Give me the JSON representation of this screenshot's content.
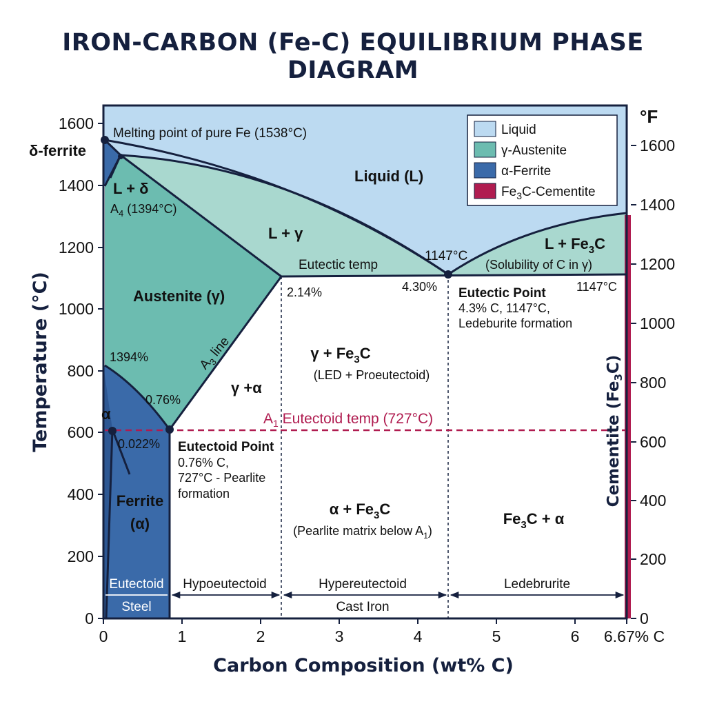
{
  "title": "IRON-CARBON (Fe-C) EQUILIBRIUM PHASE DIAGRAM",
  "colors": {
    "liquid": "#bcdaf1",
    "austenite": "#6cbcb0",
    "two_phase_l_gamma": "#a9d8cf",
    "ferrite": "#3a6aa9",
    "cementite": "#b01c50",
    "line": "#15203e",
    "border": "#15203e"
  },
  "axes": {
    "x_title": "Carbon Composition (wt% C)",
    "y_title": "Temperature (°C)",
    "y2_title_pre": "Cementite (Fe",
    "y2_title_sub": "3",
    "y2_title_post": "C)",
    "f_unit": "°F",
    "x_ticks": [
      "0",
      "1",
      "2",
      "3",
      "4",
      "5",
      "6",
      "6.67% C"
    ],
    "y_ticks": [
      "0",
      "200",
      "400",
      "600",
      "800",
      "1000",
      "1200",
      "1400",
      "1600"
    ],
    "f_ticks": [
      "0",
      "200",
      "400",
      "600",
      "800",
      "1000",
      "1200",
      "1400",
      "1600"
    ]
  },
  "legend": {
    "liquid": "Liquid",
    "austenite": "γ-Austenite",
    "ferrite": "α-Ferrite",
    "cementite_pre": "Fe",
    "cementite_sub": "3",
    "cementite_post": "C-Cementite"
  },
  "labels": {
    "melting_point": "Melting point of pure Fe (1538°C)",
    "delta_ferrite": "δ-ferrite",
    "l_delta": "L + δ",
    "a4_pre": "A",
    "a4_sub": "4",
    "a4_post": " (1394°C)",
    "liquid_region": "Liquid (L)",
    "l_gamma": "L + γ",
    "eutectic_temp": "Eutectic temp",
    "eutectic_temp_value": "1147°C",
    "l_fe3c_pre": "L + Fe",
    "l_fe3c_sub": "3",
    "l_fe3c_post": "C",
    "solubility": "(Solubility of C in γ)",
    "eutectic_temp_right": "1147°C",
    "austenite_region": "Austenite (γ)",
    "pct_214": "2.14%",
    "pct_430": "4.30%",
    "eutectic_point_title": "Eutectic Point",
    "eutectic_point_line1": "4.3% C, 1147°C,",
    "eutectic_point_line2": "Ledeburite formation",
    "a3_pre": "A",
    "a3_sub": "3",
    "a3_post": " line",
    "temp_1394": "1394%",
    "pct_076": "0.76%",
    "gamma_alpha": "γ +α",
    "gamma_fe3c_pre": "γ + Fe",
    "gamma_fe3c_sub": "3",
    "gamma_fe3c_post": "C",
    "led_proeutectoid": "(LED + Proeutectoid)",
    "a1_pre": "A",
    "a1_sub": "1",
    "a1_post": " Eutectoid temp (727°C)",
    "alpha_small": "α",
    "pct_0022": "0.022%",
    "eutectoid_point_title": "Eutectoid Point",
    "eutectoid_point_line1": "0.76% C,",
    "eutectoid_point_line2": "727°C - Pearlite",
    "eutectoid_point_line3": "formation",
    "ferrite_region": "Ferrite",
    "ferrite_alpha": "(α)",
    "alpha_fe3c_pre": "α + Fe",
    "alpha_fe3c_sub": "3",
    "alpha_fe3c_post": "C",
    "pearlite_matrix_pre": "(Pearlite matrix below A",
    "pearlite_matrix_sub": "1",
    "pearlite_matrix_post": ")",
    "fe3c_alpha_pre": "Fe",
    "fe3c_alpha_sub": "3",
    "fe3c_alpha_post": "C + α"
  },
  "bottom_bands": {
    "eutectoid": "Eutectoid",
    "steel": "Steel",
    "hypoeutectoid": "Hypoeutectoid",
    "hypereutectoid": "Hypereutectoid",
    "cast_iron": "Cast Iron",
    "ledeburite": "Ledebrurite"
  }
}
